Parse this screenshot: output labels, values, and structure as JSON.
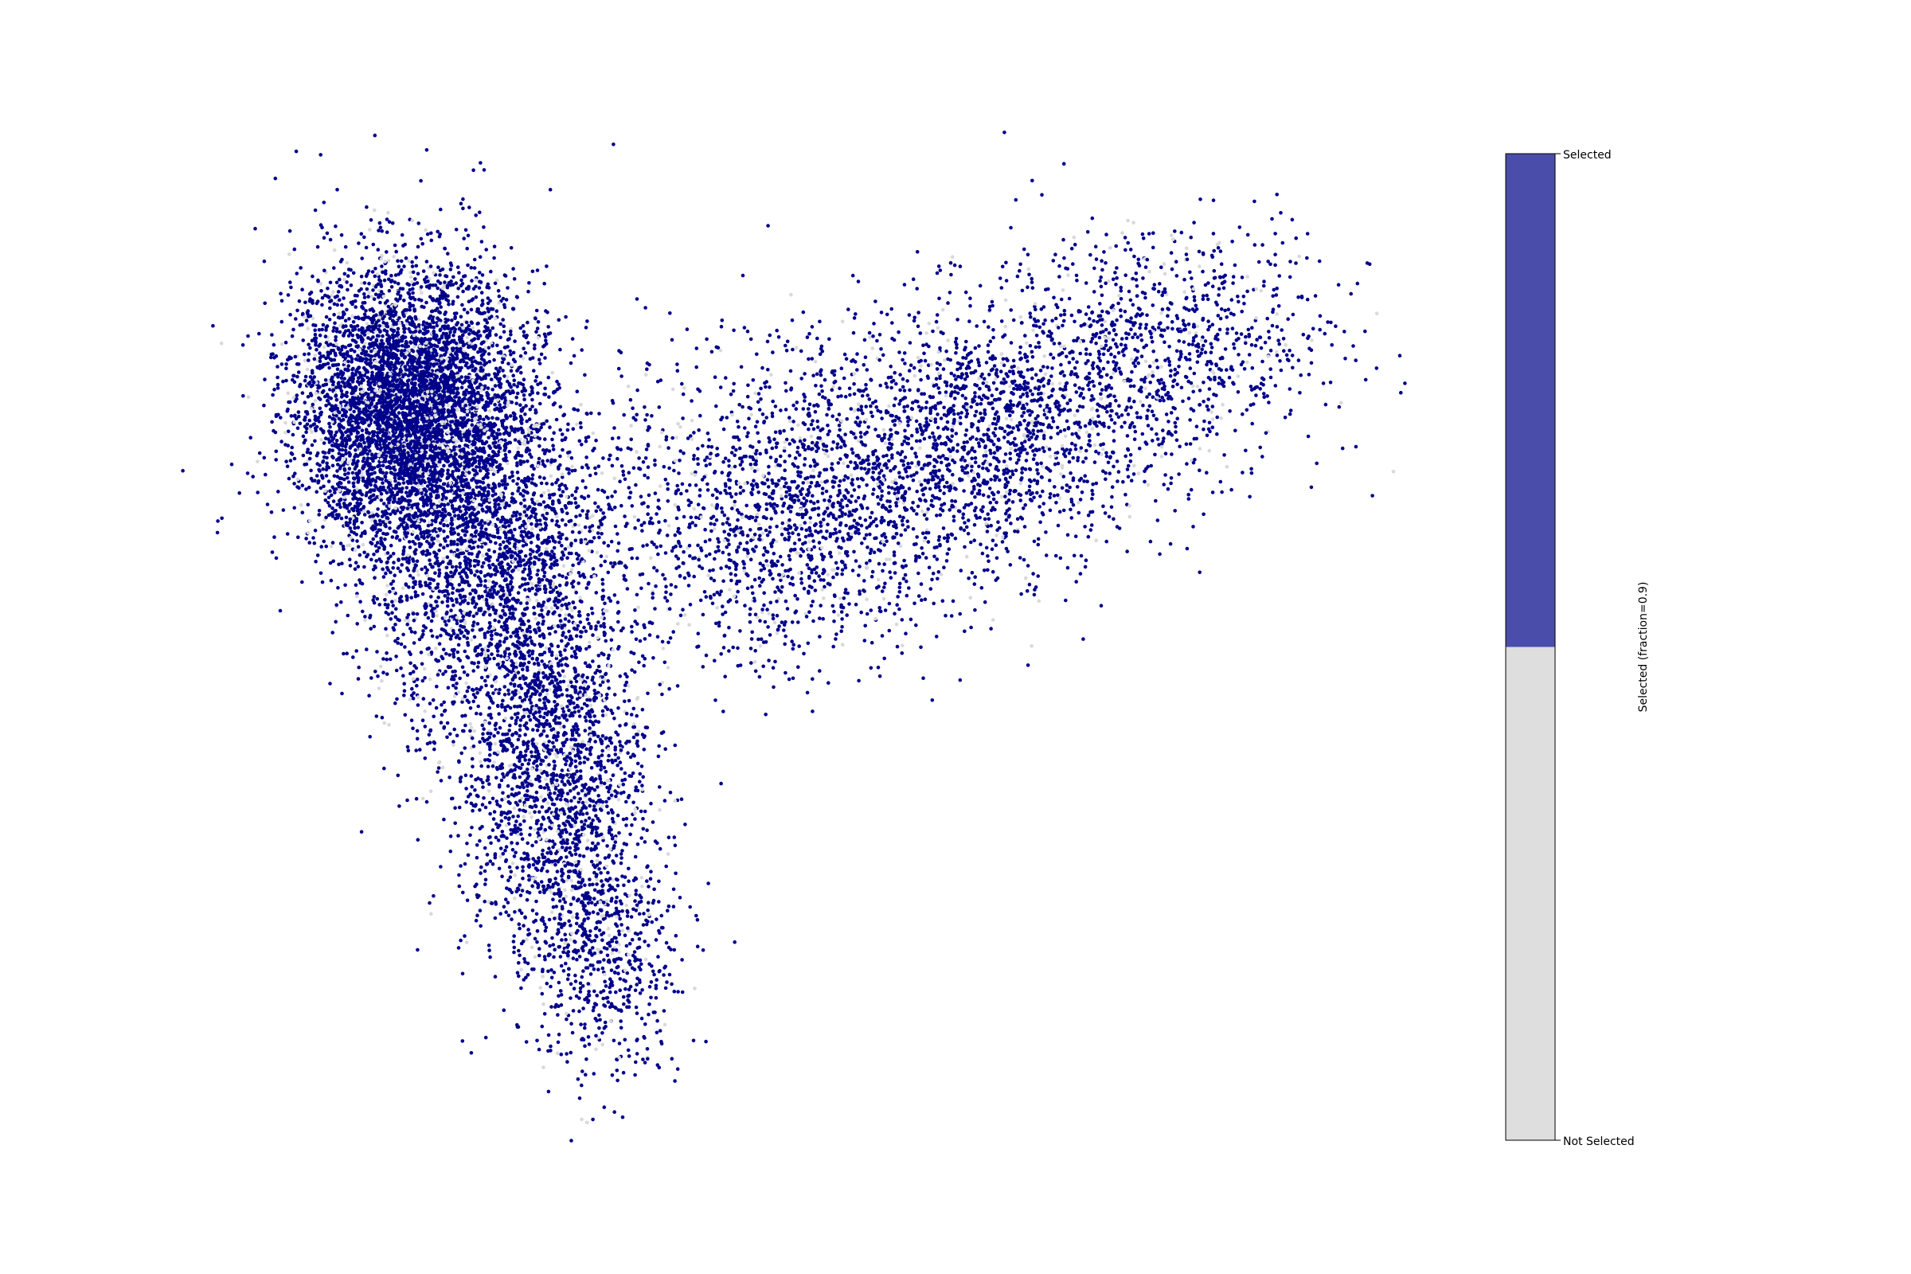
{
  "chart_data": {
    "type": "scatter",
    "title": "",
    "xlabel": "",
    "ylabel": "",
    "axes_visible": false,
    "grid": false,
    "point_color_selected": "#00008b",
    "point_color_not_selected": "#d9d9d9",
    "series": [
      {
        "values": [
          {
            "x": -3.6,
            "y": 2.0
          },
          {
            "x": -3.2,
            "y": 1.7
          },
          {
            "x": -2.9,
            "y": 2.3
          },
          {
            "x": -2.5,
            "y": 1.9
          },
          {
            "x": -2.0,
            "y": 1.2
          },
          {
            "x": -1.5,
            "y": 0.6
          },
          {
            "x": -1.0,
            "y": -0.2
          },
          {
            "x": -0.8,
            "y": -1.0
          },
          {
            "x": -0.5,
            "y": -1.8
          },
          {
            "x": -0.3,
            "y": -2.6
          },
          {
            "x": 0.0,
            "y": -3.4
          },
          {
            "x": 0.5,
            "y": 0.5
          },
          {
            "x": 1.5,
            "y": 0.9
          },
          {
            "x": 2.5,
            "y": 1.4
          },
          {
            "x": 3.5,
            "y": 1.8
          },
          {
            "x": 4.5,
            "y": 2.2
          },
          {
            "x": 5.5,
            "y": 2.6
          },
          {
            "x": 6.3,
            "y": 2.9
          }
        ]
      }
    ],
    "colorbar": {
      "title": "Selected (fraction=0.9)",
      "top_label": "Selected",
      "bottom_label": "Not Selected",
      "selected_fraction": 0.5,
      "selected_color": "#4b4dab",
      "not_selected_color": "#dedede"
    }
  }
}
